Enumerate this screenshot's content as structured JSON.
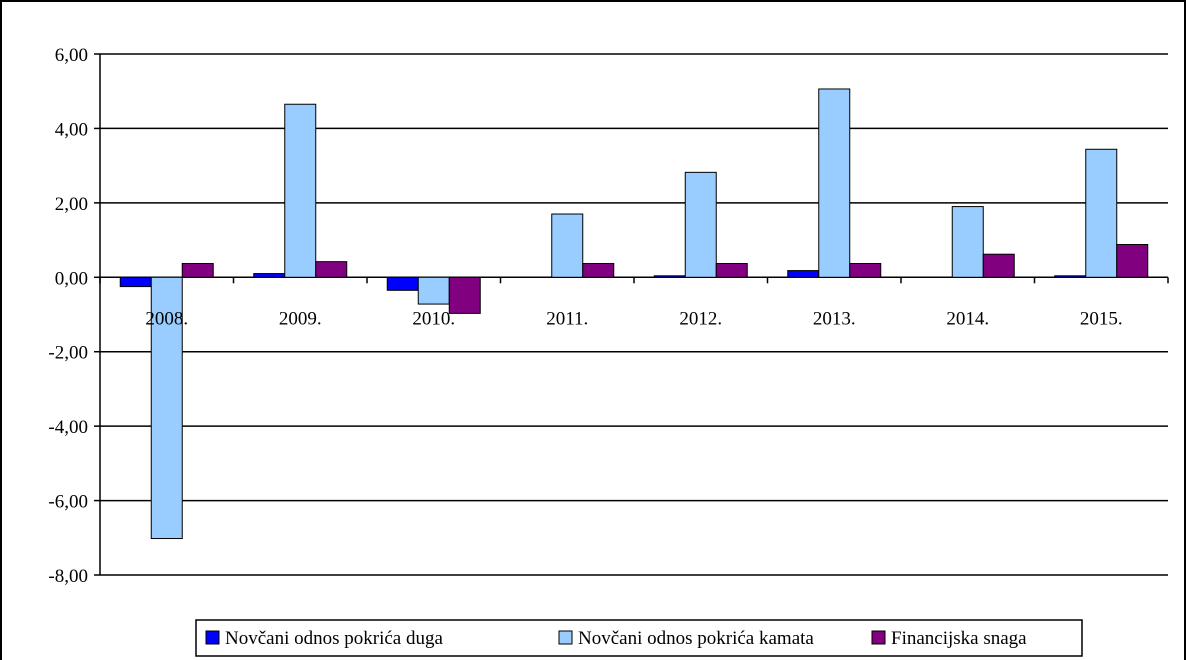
{
  "chart_data": {
    "type": "bar",
    "categories": [
      "2008.",
      "2009.",
      "2010.",
      "2011.",
      "2012.",
      "2013.",
      "2014.",
      "2015."
    ],
    "series": [
      {
        "name": "Novčani odnos pokrića duga",
        "color": "#0000ff",
        "values": [
          -0.25,
          0.1,
          -0.35,
          0.0,
          0.04,
          0.18,
          0.0,
          0.04
        ]
      },
      {
        "name": "Novčani odnos pokrića kamata",
        "color": "#99ccff",
        "values": [
          -7.02,
          4.65,
          -0.72,
          1.7,
          2.82,
          5.06,
          1.9,
          3.44
        ]
      },
      {
        "name": "Financijska snaga",
        "color": "#800080",
        "values": [
          0.37,
          0.42,
          -0.97,
          0.37,
          0.37,
          0.37,
          0.62,
          0.88
        ]
      }
    ],
    "yticks": [
      "-8,00",
      "-6,00",
      "-4,00",
      "-2,00",
      "0,00",
      "2,00",
      "4,00",
      "6,00"
    ],
    "ylim": [
      -8,
      6
    ],
    "grid": true,
    "legend_position": "bottom",
    "title": "",
    "xlabel": "",
    "ylabel": ""
  }
}
